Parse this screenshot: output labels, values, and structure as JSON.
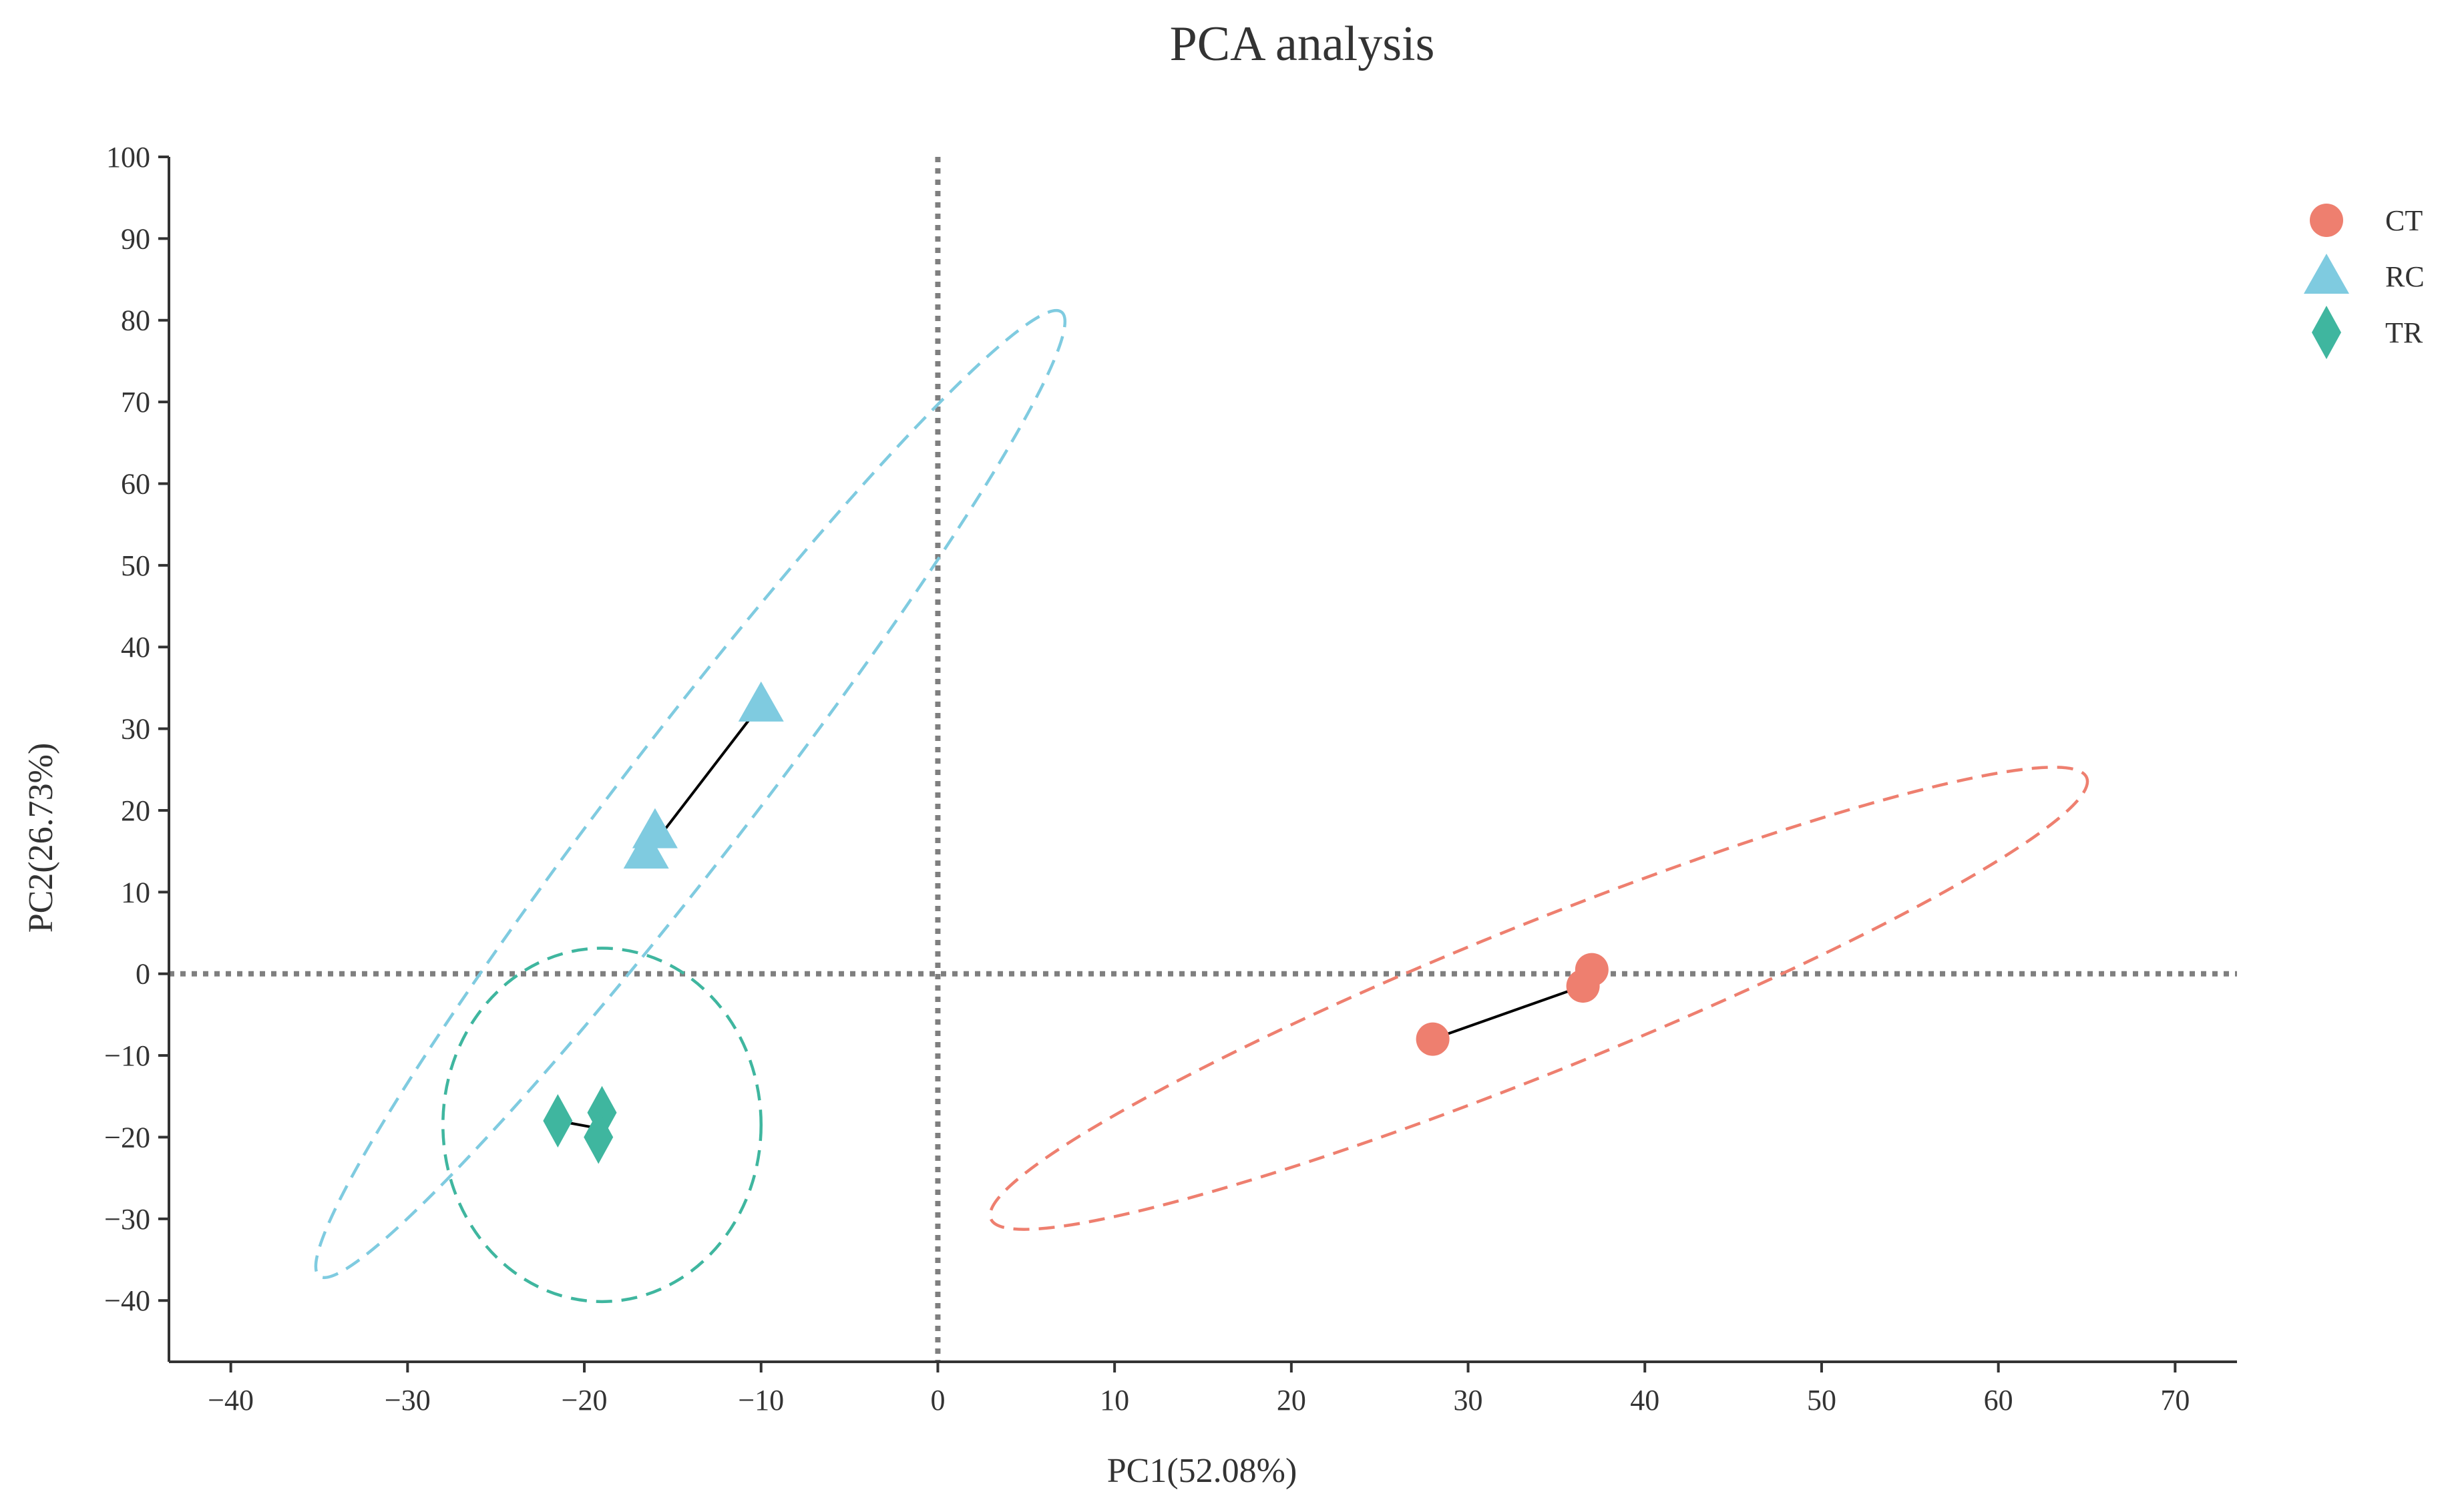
{
  "chart_data": {
    "type": "scatter",
    "title": "PCA analysis",
    "xlabel": "PC1(52.08%)",
    "ylabel": "PC2(26.73%)",
    "xlim": [
      -43.5,
      73.5
    ],
    "ylim": [
      -47.5,
      100
    ],
    "xticks": [
      -40,
      -30,
      -20,
      -10,
      0,
      10,
      20,
      30,
      40,
      50,
      60,
      70
    ],
    "yticks": [
      -40,
      -30,
      -20,
      -10,
      0,
      10,
      20,
      30,
      40,
      50,
      60,
      70,
      80,
      90,
      100
    ],
    "reference_lines": {
      "x": 0,
      "y": 0
    },
    "legend_position": "top-right",
    "series": [
      {
        "name": "CT",
        "marker": "circle",
        "color": "#EE7F6F",
        "points": [
          [
            37,
            0.5
          ],
          [
            36.5,
            -1.5
          ],
          [
            28,
            -8
          ]
        ],
        "centroid": [
          36.5,
          -1.5
        ],
        "ellipse": {
          "from": [
            3,
            -30
          ],
          "to": [
            65,
            24
          ],
          "minor_half": 4.2
        }
      },
      {
        "name": "RC",
        "marker": "triangle",
        "color": "#7FCBE0",
        "points": [
          [
            -10,
            33
          ],
          [
            -16,
            17.5
          ],
          [
            -16.5,
            15
          ]
        ],
        "centroid": [
          -15.5,
          17.5
        ],
        "ellipse": {
          "from": [
            -35,
            -37
          ],
          "to": [
            7,
            81
          ],
          "minor_half": 3.6
        }
      },
      {
        "name": "TR",
        "marker": "diamond",
        "color": "#3FB69F",
        "points": [
          [
            -21.5,
            -18
          ],
          [
            -19,
            -17
          ],
          [
            -19.2,
            -20
          ]
        ],
        "centroid": [
          -19.5,
          -18.8
        ],
        "ellipse": {
          "from": [
            -28,
            -18.5
          ],
          "to": [
            -10,
            -18.5
          ],
          "minor_half": 10
        }
      }
    ]
  },
  "colors": {
    "axis": "#333333",
    "reference_line": "#7F7F7F",
    "connector": "#000000"
  }
}
